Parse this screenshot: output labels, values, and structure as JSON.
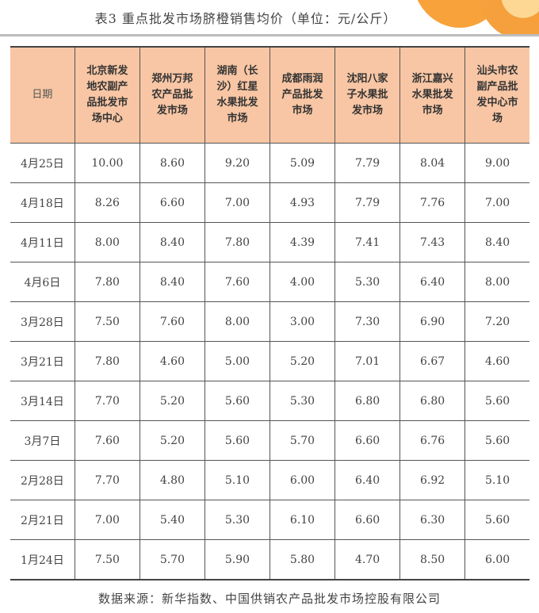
{
  "title": "表3 重点批发市场脐橙销售均价（单位：元/公斤）",
  "table": {
    "headers": [
      "日期",
      "北京新发地农副产品批发市场中心",
      "郑州万邦农产品批发市场",
      "湖南（长沙）红星水果批发市场",
      "成都雨润产品批发市场",
      "沈阳八家子水果批发市场",
      "浙江嘉兴水果批发市场",
      "汕头市农副产品批发中心市场"
    ],
    "rows": [
      [
        "4月25日",
        "10.00",
        "8.60",
        "9.20",
        "5.09",
        "7.79",
        "8.04",
        "9.00"
      ],
      [
        "4月18日",
        "8.26",
        "6.60",
        "7.00",
        "4.93",
        "7.79",
        "7.76",
        "7.00"
      ],
      [
        "4月11日",
        "8.00",
        "8.40",
        "7.80",
        "4.39",
        "7.41",
        "7.43",
        "8.40"
      ],
      [
        "4月6日",
        "7.80",
        "8.40",
        "7.60",
        "4.00",
        "5.30",
        "6.40",
        "8.00"
      ],
      [
        "3月28日",
        "7.50",
        "7.60",
        "8.00",
        "3.00",
        "7.30",
        "6.90",
        "7.20"
      ],
      [
        "3月21日",
        "7.80",
        "4.60",
        "5.00",
        "5.20",
        "7.01",
        "6.67",
        "4.60"
      ],
      [
        "3月14日",
        "7.70",
        "5.20",
        "5.60",
        "5.30",
        "6.80",
        "6.80",
        "5.60"
      ],
      [
        "3月7日",
        "7.60",
        "5.20",
        "5.60",
        "5.70",
        "6.60",
        "6.76",
        "5.60"
      ],
      [
        "2月28日",
        "7.70",
        "4.80",
        "5.10",
        "6.00",
        "6.40",
        "6.92",
        "5.10"
      ],
      [
        "2月21日",
        "7.00",
        "5.40",
        "5.30",
        "6.10",
        "6.60",
        "6.30",
        "5.60"
      ],
      [
        "1月24日",
        "7.50",
        "5.70",
        "5.90",
        "5.80",
        "4.70",
        "8.50",
        "6.00"
      ]
    ]
  },
  "source": "数据来源：新华指数、中国供销农产品批发市场控股有限公司",
  "colors": {
    "header_bg": "#f8c6a4",
    "accent": "#f5a03c"
  }
}
